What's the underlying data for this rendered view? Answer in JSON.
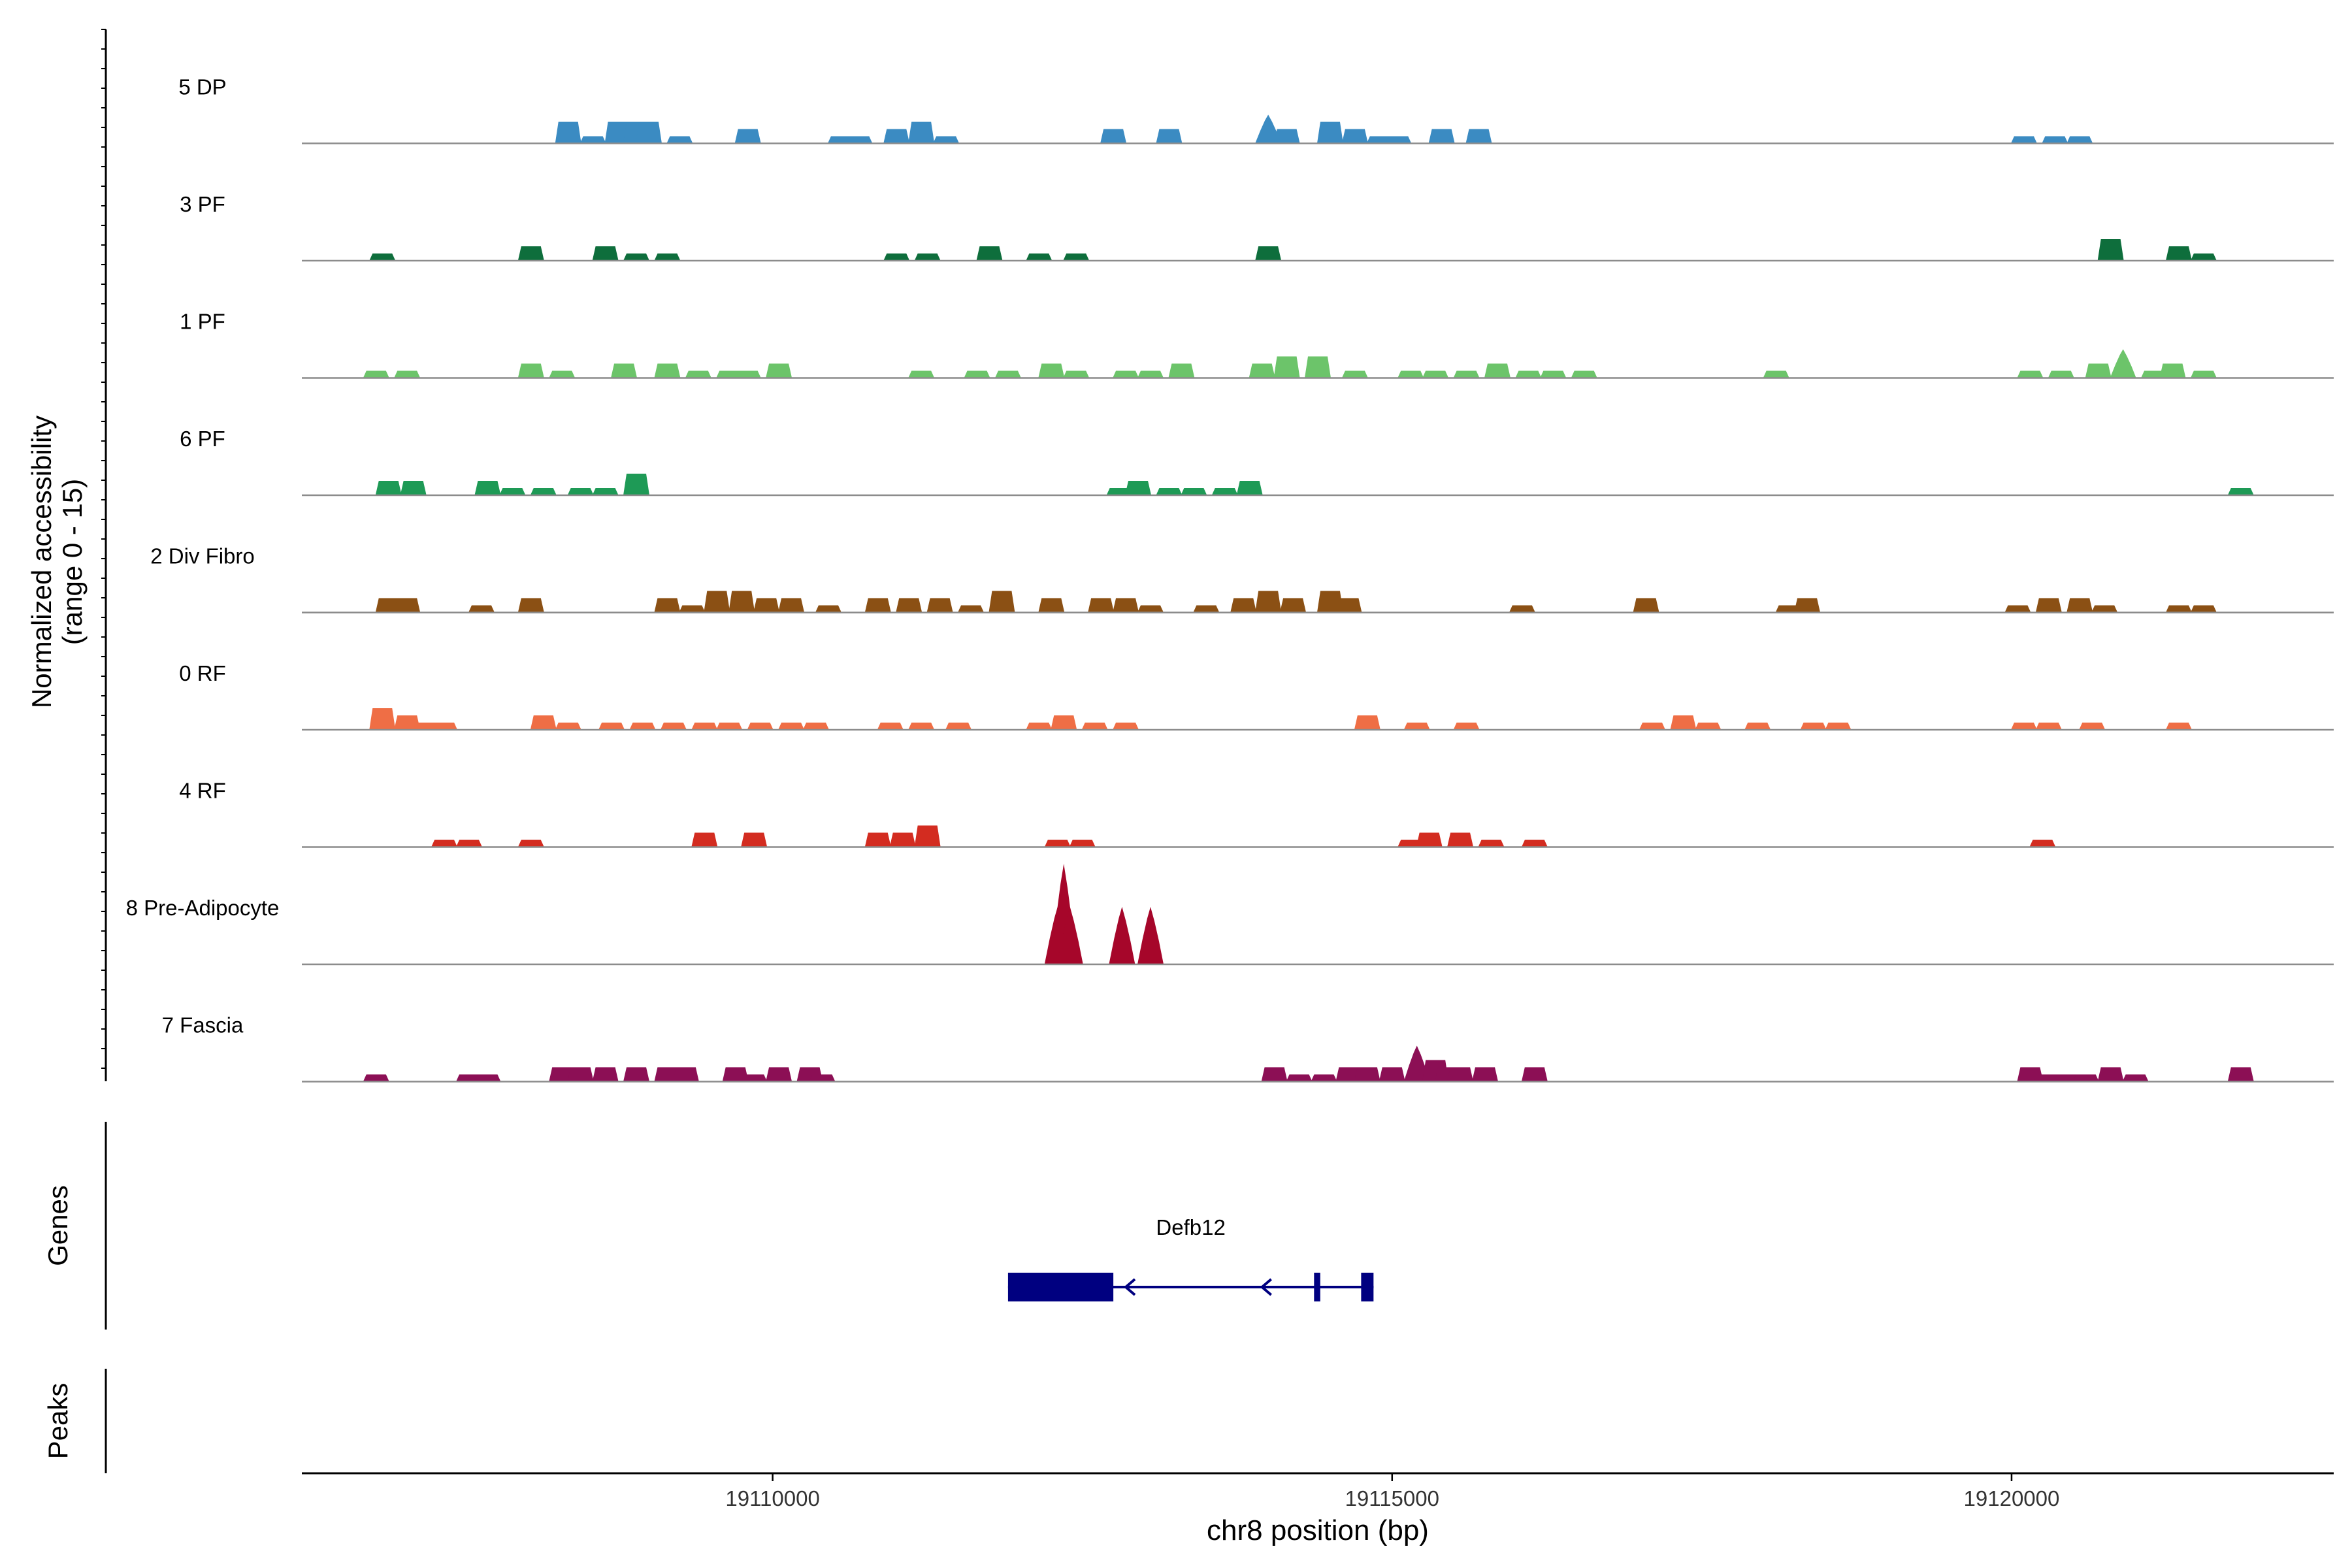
{
  "chart_data": {
    "type": "area",
    "title": "",
    "ylabel_line1": "Normalized accessibility",
    "ylabel_line2": "(range 0 - 15)",
    "ylim": [
      0,
      15
    ],
    "xlabel": "chr8 position (bp)",
    "xlim": [
      19106200,
      19122600
    ],
    "xticks": [
      19110000,
      19115000,
      19120000
    ],
    "xtick_labels": [
      "19110000",
      "19115000",
      "19120000"
    ],
    "tracks": [
      {
        "name": "5 DP",
        "color": "#3B8BC2",
        "peaks": [
          [
            19108350,
            3
          ],
          [
            19108550,
            1
          ],
          [
            19108750,
            3
          ],
          [
            19108900,
            3
          ],
          [
            19109000,
            3
          ],
          [
            19109250,
            1
          ],
          [
            19109800,
            2
          ],
          [
            19110550,
            1
          ],
          [
            19110700,
            1
          ],
          [
            19111000,
            2
          ],
          [
            19111200,
            3
          ],
          [
            19111400,
            1
          ],
          [
            19112750,
            2
          ],
          [
            19113200,
            2
          ],
          [
            19114000,
            4
          ],
          [
            19114150,
            2
          ],
          [
            19114500,
            3
          ],
          [
            19114700,
            2
          ],
          [
            19114900,
            1
          ],
          [
            19115050,
            1
          ],
          [
            19115400,
            2
          ],
          [
            19115700,
            2
          ],
          [
            19120100,
            1
          ],
          [
            19120350,
            1
          ],
          [
            19120550,
            1
          ]
        ]
      },
      {
        "name": "3 PF",
        "color": "#0E6E3C",
        "peaks": [
          [
            19106850,
            1
          ],
          [
            19108050,
            2
          ],
          [
            19108650,
            2
          ],
          [
            19108900,
            1
          ],
          [
            19109150,
            1
          ],
          [
            19111000,
            1
          ],
          [
            19111250,
            1
          ],
          [
            19111750,
            2
          ],
          [
            19112150,
            1
          ],
          [
            19112450,
            1
          ],
          [
            19114000,
            2
          ],
          [
            19120800,
            3
          ],
          [
            19121350,
            2
          ],
          [
            19121550,
            1
          ]
        ]
      },
      {
        "name": "1 PF",
        "color": "#6CC46A",
        "peaks": [
          [
            19106800,
            1
          ],
          [
            19107050,
            1
          ],
          [
            19108050,
            2
          ],
          [
            19108300,
            1
          ],
          [
            19108800,
            2
          ],
          [
            19109150,
            2
          ],
          [
            19109400,
            1
          ],
          [
            19109650,
            1
          ],
          [
            19109800,
            1
          ],
          [
            19110050,
            2
          ],
          [
            19111200,
            1
          ],
          [
            19111650,
            1
          ],
          [
            19111900,
            1
          ],
          [
            19112250,
            2
          ],
          [
            19112450,
            1
          ],
          [
            19112850,
            1
          ],
          [
            19113050,
            1
          ],
          [
            19113300,
            2
          ],
          [
            19113950,
            2
          ],
          [
            19114150,
            3
          ],
          [
            19114400,
            3
          ],
          [
            19114700,
            1
          ],
          [
            19115150,
            1
          ],
          [
            19115350,
            1
          ],
          [
            19115600,
            1
          ],
          [
            19115850,
            2
          ],
          [
            19116100,
            1
          ],
          [
            19116300,
            1
          ],
          [
            19116550,
            1
          ],
          [
            19118100,
            1
          ],
          [
            19120150,
            1
          ],
          [
            19120400,
            1
          ],
          [
            19120700,
            2
          ],
          [
            19120900,
            4
          ],
          [
            19121150,
            1
          ],
          [
            19121300,
            2
          ],
          [
            19121550,
            1
          ]
        ]
      },
      {
        "name": "6 PF",
        "color": "#1E9A56",
        "peaks": [
          [
            19106900,
            2
          ],
          [
            19107100,
            2
          ],
          [
            19107700,
            2
          ],
          [
            19107900,
            1
          ],
          [
            19108150,
            1
          ],
          [
            19108450,
            1
          ],
          [
            19108650,
            1
          ],
          [
            19108900,
            3
          ],
          [
            19112800,
            1
          ],
          [
            19112950,
            2
          ],
          [
            19113200,
            1
          ],
          [
            19113400,
            1
          ],
          [
            19113650,
            1
          ],
          [
            19113850,
            2
          ],
          [
            19121850,
            1
          ]
        ]
      },
      {
        "name": "2 Div Fibro",
        "color": "#8B5014",
        "peaks": [
          [
            19106900,
            2
          ],
          [
            19107050,
            2
          ],
          [
            19107650,
            1
          ],
          [
            19108050,
            2
          ],
          [
            19109150,
            2
          ],
          [
            19109350,
            1
          ],
          [
            19109550,
            3
          ],
          [
            19109750,
            3
          ],
          [
            19109950,
            2
          ],
          [
            19110150,
            2
          ],
          [
            19110450,
            1
          ],
          [
            19110850,
            2
          ],
          [
            19111100,
            2
          ],
          [
            19111350,
            2
          ],
          [
            19111600,
            1
          ],
          [
            19111850,
            3
          ],
          [
            19112250,
            2
          ],
          [
            19112650,
            2
          ],
          [
            19112850,
            2
          ],
          [
            19113050,
            1
          ],
          [
            19113500,
            1
          ],
          [
            19113800,
            2
          ],
          [
            19114000,
            3
          ],
          [
            19114200,
            2
          ],
          [
            19114500,
            3
          ],
          [
            19114650,
            2
          ],
          [
            19116050,
            1
          ],
          [
            19117050,
            2
          ],
          [
            19118200,
            1
          ],
          [
            19118350,
            2
          ],
          [
            19120050,
            1
          ],
          [
            19120300,
            2
          ],
          [
            19120550,
            2
          ],
          [
            19120750,
            1
          ],
          [
            19121350,
            1
          ],
          [
            19121550,
            1
          ]
        ]
      },
      {
        "name": "0 RF",
        "color": "#EF6E45",
        "peaks": [
          [
            19106850,
            3
          ],
          [
            19107050,
            2
          ],
          [
            19107200,
            1
          ],
          [
            19107350,
            1
          ],
          [
            19108150,
            2
          ],
          [
            19108350,
            1
          ],
          [
            19108700,
            1
          ],
          [
            19108950,
            1
          ],
          [
            19109200,
            1
          ],
          [
            19109450,
            1
          ],
          [
            19109650,
            1
          ],
          [
            19109900,
            1
          ],
          [
            19110150,
            1
          ],
          [
            19110350,
            1
          ],
          [
            19110950,
            1
          ],
          [
            19111200,
            1
          ],
          [
            19111500,
            1
          ],
          [
            19112150,
            1
          ],
          [
            19112350,
            2
          ],
          [
            19112600,
            1
          ],
          [
            19112850,
            1
          ],
          [
            19114800,
            2
          ],
          [
            19115200,
            1
          ],
          [
            19115600,
            1
          ],
          [
            19117100,
            1
          ],
          [
            19117350,
            2
          ],
          [
            19117550,
            1
          ],
          [
            19117950,
            1
          ],
          [
            19118400,
            1
          ],
          [
            19118600,
            1
          ],
          [
            19120100,
            1
          ],
          [
            19120300,
            1
          ],
          [
            19120650,
            1
          ],
          [
            19121350,
            1
          ]
        ]
      },
      {
        "name": "4 RF",
        "color": "#D32C20",
        "peaks": [
          [
            19107350,
            1
          ],
          [
            19107550,
            1
          ],
          [
            19108050,
            1
          ],
          [
            19109450,
            2
          ],
          [
            19109850,
            2
          ],
          [
            19110850,
            2
          ],
          [
            19111050,
            2
          ],
          [
            19111250,
            3
          ],
          [
            19112300,
            1
          ],
          [
            19112500,
            1
          ],
          [
            19115150,
            1
          ],
          [
            19115300,
            2
          ],
          [
            19115550,
            2
          ],
          [
            19115800,
            1
          ],
          [
            19116150,
            1
          ],
          [
            19120250,
            1
          ]
        ]
      },
      {
        "name": "8 Pre-Adipocyte",
        "color": "#A6062A",
        "peaks": [
          [
            19112300,
            8
          ],
          [
            19112350,
            14
          ],
          [
            19112400,
            8
          ],
          [
            19112820,
            8
          ],
          [
            19113050,
            8
          ]
        ]
      },
      {
        "name": "7 Fascia",
        "color": "#8C0F55",
        "peaks": [
          [
            19106800,
            1
          ],
          [
            19107550,
            1
          ],
          [
            19107700,
            1
          ],
          [
            19108300,
            2
          ],
          [
            19108450,
            2
          ],
          [
            19108650,
            2
          ],
          [
            19108900,
            2
          ],
          [
            19109150,
            2
          ],
          [
            19109300,
            2
          ],
          [
            19109700,
            2
          ],
          [
            19109850,
            1
          ],
          [
            19110050,
            2
          ],
          [
            19110300,
            2
          ],
          [
            19110400,
            1
          ],
          [
            19114050,
            2
          ],
          [
            19114250,
            1
          ],
          [
            19114450,
            1
          ],
          [
            19114650,
            2
          ],
          [
            19114800,
            2
          ],
          [
            19115000,
            2
          ],
          [
            19115200,
            5
          ],
          [
            19115350,
            3
          ],
          [
            19115450,
            2
          ],
          [
            19115550,
            2
          ],
          [
            19115750,
            2
          ],
          [
            19116150,
            2
          ],
          [
            19120150,
            2
          ],
          [
            19120300,
            1
          ],
          [
            19120450,
            1
          ],
          [
            19120600,
            1
          ],
          [
            19120800,
            2
          ],
          [
            19121000,
            1
          ],
          [
            19121850,
            2
          ]
        ]
      }
    ],
    "genes": [
      {
        "name": "Defb12",
        "strand": "-",
        "start": 19111900,
        "end": 19114850,
        "exons": [
          [
            19111900,
            19112750
          ],
          [
            19114370,
            19114420
          ],
          [
            19114750,
            19114850
          ]
        ]
      }
    ],
    "panel_labels": {
      "genes": "Genes",
      "peaks": "Peaks"
    }
  }
}
